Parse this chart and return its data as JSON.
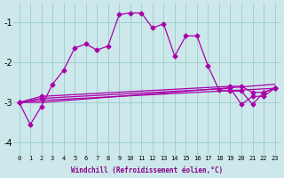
{
  "xlabel": "Windchill (Refroidissement éolien,°C)",
  "ylabel": "",
  "bg_color": "#cce8ea",
  "line_color": "#aa00aa",
  "marker": "D",
  "markersize": 2.5,
  "linewidth": 0.9,
  "xlim": [
    -0.5,
    23.5
  ],
  "ylim": [
    -4.3,
    -0.55
  ],
  "yticks": [
    -4,
    -3,
    -2,
    -1
  ],
  "xticks": [
    0,
    1,
    2,
    3,
    4,
    5,
    6,
    7,
    8,
    9,
    10,
    11,
    12,
    13,
    14,
    15,
    16,
    17,
    18,
    19,
    20,
    21,
    22,
    23
  ],
  "grid_color": "#99cccc",
  "grid_linewidth": 0.6,
  "series": [
    {
      "x": [
        0,
        1,
        2,
        3,
        4,
        5,
        6,
        7,
        8,
        9,
        10,
        11,
        12,
        13,
        14,
        15,
        16,
        17,
        18,
        19,
        20,
        21,
        22,
        23
      ],
      "y": [
        -3.0,
        -3.55,
        -3.1,
        -2.55,
        -2.2,
        -1.65,
        -1.55,
        -1.7,
        -1.6,
        -0.82,
        -0.78,
        -0.78,
        -1.15,
        -1.05,
        -1.85,
        -1.35,
        -1.35,
        -2.1,
        -2.7,
        -2.72,
        -2.72,
        -3.05,
        -2.75,
        -2.65
      ],
      "has_marker": true
    },
    {
      "x": [
        0,
        2,
        23
      ],
      "y": [
        -3.0,
        -3.0,
        -2.55
      ],
      "has_marker": false
    },
    {
      "x": [
        0,
        2,
        23
      ],
      "y": [
        -3.0,
        -2.95,
        -2.65
      ],
      "has_marker": false
    },
    {
      "x": [
        0,
        2,
        19,
        20,
        21,
        22,
        23
      ],
      "y": [
        -3.0,
        -2.9,
        -2.65,
        -3.05,
        -2.85,
        -2.85,
        -2.65
      ],
      "has_marker": true
    },
    {
      "x": [
        0,
        2,
        19,
        20,
        21,
        22,
        23
      ],
      "y": [
        -3.0,
        -2.85,
        -2.6,
        -2.6,
        -2.75,
        -2.75,
        -2.65
      ],
      "has_marker": true
    }
  ]
}
